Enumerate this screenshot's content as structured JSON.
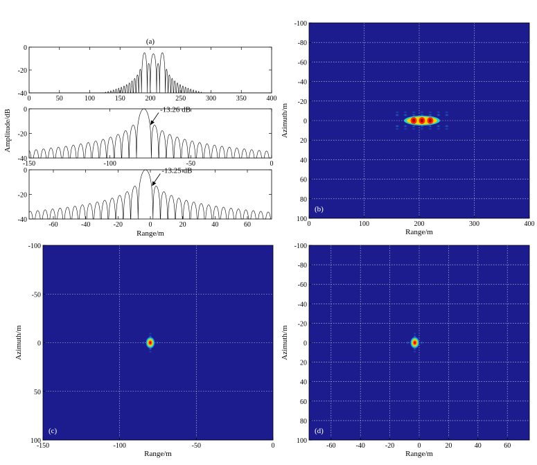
{
  "chart_data": [
    {
      "id": "a1",
      "type": "line",
      "title": "(a)",
      "xlabel": "",
      "ylabel": "",
      "xlim": [
        0,
        400
      ],
      "ylim": [
        -40,
        0
      ],
      "xticks": [
        0,
        50,
        100,
        150,
        200,
        250,
        300,
        350,
        400
      ],
      "yticks": [
        0,
        -20,
        -40
      ],
      "series": [
        {
          "values_desc": "range profile of three targets",
          "peaks": [
            190,
            205,
            220
          ],
          "peak_db": 0,
          "lobe_period_m": 4.3
        }
      ],
      "grid": false
    },
    {
      "id": "a2",
      "type": "line",
      "title": "",
      "xlabel": "",
      "ylabel": "Amplitude/dB",
      "xlim": [
        -150,
        0
      ],
      "ylim": [
        -40,
        0
      ],
      "xticks": [
        -150,
        -100,
        -50,
        0
      ],
      "yticks": [
        0,
        -20,
        -40
      ],
      "series": [
        {
          "mainlobe_center": -79,
          "peak_db": 0,
          "first_sidelobe_db": -13.26
        }
      ],
      "annotations": [
        {
          "text": "-13.26 dB",
          "target_x": -75,
          "target_y": -13.26
        }
      ],
      "grid": false
    },
    {
      "id": "a3",
      "type": "line",
      "title": "",
      "xlabel": "Range/m",
      "ylabel": "",
      "xlim": [
        -75,
        75
      ],
      "ylim": [
        -40,
        0
      ],
      "xticks": [
        -60,
        -40,
        -20,
        0,
        20,
        40,
        60
      ],
      "yticks": [
        0,
        -20,
        -40
      ],
      "series": [
        {
          "mainlobe_center": -3,
          "peak_db": 0,
          "first_sidelobe_db": -13.25
        }
      ],
      "annotations": [
        {
          "text": "-13.25 dB",
          "target_x": 1,
          "target_y": -13.25
        }
      ],
      "grid": false
    },
    {
      "id": "b",
      "type": "heatmap",
      "panel_label": "(b)",
      "xlabel": "Range/m",
      "ylabel": "Azimuth/m",
      "xlim": [
        0,
        400
      ],
      "ylim": [
        -100,
        100
      ],
      "xticks": [
        0,
        100,
        200,
        300,
        400
      ],
      "yticks": [
        -100,
        -80,
        -60,
        -40,
        -20,
        0,
        20,
        40,
        60,
        80,
        100
      ],
      "targets": [
        {
          "x": 190,
          "y": 0
        },
        {
          "x": 205,
          "y": 0
        },
        {
          "x": 220,
          "y": 0
        }
      ],
      "grid": true
    },
    {
      "id": "c",
      "type": "heatmap",
      "panel_label": "(c)",
      "xlabel": "Range/m",
      "ylabel": "Azimuth/m",
      "xlim": [
        -150,
        0
      ],
      "ylim": [
        -100,
        100
      ],
      "xticks": [
        -150,
        -100,
        -50,
        0
      ],
      "yticks": [
        -100,
        -50,
        0,
        50,
        100
      ],
      "targets": [
        {
          "x": -80,
          "y": 0
        }
      ],
      "grid": true
    },
    {
      "id": "d",
      "type": "heatmap",
      "panel_label": "(d)",
      "xlabel": "Range/m",
      "ylabel": "Azimuth/m",
      "xlim": [
        -75,
        75
      ],
      "ylim": [
        -100,
        100
      ],
      "xticks": [
        -60,
        -40,
        -20,
        0,
        20,
        40,
        60
      ],
      "yticks": [
        -100,
        -80,
        -60,
        -40,
        -20,
        0,
        20,
        40,
        60,
        80,
        100
      ],
      "targets": [
        {
          "x": -3,
          "y": 0
        }
      ],
      "grid": true
    }
  ],
  "colors": {
    "image_background": "#1c1c8f",
    "grid": "#ffffff",
    "line": "#000000"
  }
}
